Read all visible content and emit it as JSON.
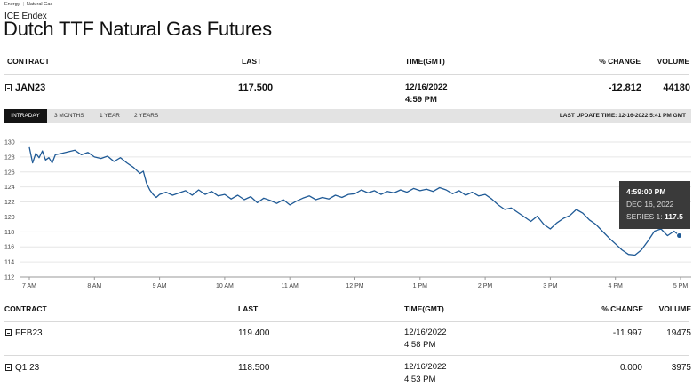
{
  "breadcrumb": {
    "items": [
      "Energy",
      "Natural Gas"
    ],
    "sep": "|"
  },
  "exchange": "ICE Endex",
  "title": "Dutch TTF Natural Gas Futures",
  "table_headers": {
    "contract": "CONTRACT",
    "last": "LAST",
    "time": "TIME(GMT)",
    "change": "% CHANGE",
    "volume": "VOLUME"
  },
  "main_row": {
    "contract": "JAN23",
    "last": "117.500",
    "date": "12/16/2022",
    "time": "4:59 PM",
    "change": "-12.812",
    "volume": "44180"
  },
  "tabs": [
    "INTRADAY",
    "3 MONTHS",
    "1 YEAR",
    "2 YEARS"
  ],
  "active_tab": "INTRADAY",
  "last_update": "LAST UPDATE TIME: 12-16-2022 5:41 PM GMT",
  "tooltip": {
    "time": "4:59:00 PM",
    "date": "DEC 16, 2022",
    "series_label": "SERIES 1:",
    "series_value": "117.5"
  },
  "other_rows": [
    {
      "contract": "FEB23",
      "last": "119.400",
      "date": "12/16/2022",
      "time": "4:58 PM",
      "change": "-11.997",
      "volume": "19475"
    },
    {
      "contract": "Q1 23",
      "last": "118.500",
      "date": "12/16/2022",
      "time": "4:53 PM",
      "change": "0.000",
      "volume": "3975"
    }
  ],
  "colors": {
    "line": "#1f5a96",
    "tab_active": "#141414",
    "tab_bar": "#e3e3e3"
  },
  "chart_data": {
    "type": "line",
    "xlabel": "",
    "ylabel": "",
    "x_ticks": [
      "7 AM",
      "8 AM",
      "9 AM",
      "10 AM",
      "11 AM",
      "12 PM",
      "1 PM",
      "2 PM",
      "3 PM",
      "4 PM",
      "5 PM"
    ],
    "y_ticks": [
      112,
      114,
      116,
      118,
      120,
      122,
      124,
      126,
      128,
      130
    ],
    "ylim": [
      112,
      130
    ],
    "grid": "horizontal",
    "series": [
      {
        "x": [
          7.0,
          7.05,
          7.1,
          7.15,
          7.2,
          7.25,
          7.3,
          7.35,
          7.4,
          7.5,
          7.6,
          7.7,
          7.8,
          7.9,
          8.0,
          8.1,
          8.2,
          8.3,
          8.4,
          8.5,
          8.6,
          8.7,
          8.75,
          8.8,
          8.85,
          8.9,
          8.95,
          9.0,
          9.1,
          9.2,
          9.3,
          9.4,
          9.5,
          9.6,
          9.7,
          9.8,
          9.9,
          10.0,
          10.1,
          10.2,
          10.3,
          10.4,
          10.5,
          10.6,
          10.7,
          10.8,
          10.9,
          11.0,
          11.1,
          11.2,
          11.3,
          11.4,
          11.5,
          11.6,
          11.7,
          11.8,
          11.9,
          12.0,
          12.1,
          12.2,
          12.3,
          12.4,
          12.5,
          12.6,
          12.7,
          12.8,
          12.9,
          13.0,
          13.1,
          13.2,
          13.3,
          13.4,
          13.5,
          13.6,
          13.7,
          13.8,
          13.9,
          14.0,
          14.1,
          14.2,
          14.3,
          14.4,
          14.5,
          14.6,
          14.7,
          14.8,
          14.9,
          15.0,
          15.1,
          15.2,
          15.3,
          15.4,
          15.5,
          15.6,
          15.7,
          15.8,
          15.9,
          16.0,
          16.1,
          16.2,
          16.3,
          16.4,
          16.5,
          16.6,
          16.7,
          16.8,
          16.9,
          16.98
        ],
        "values": [
          129.3,
          127.2,
          128.5,
          127.9,
          128.8,
          127.6,
          127.9,
          127.2,
          128.3,
          128.5,
          128.7,
          128.9,
          128.3,
          128.6,
          128.0,
          127.8,
          128.1,
          127.4,
          127.9,
          127.2,
          126.6,
          125.8,
          126.1,
          124.5,
          123.6,
          123.0,
          122.6,
          123.0,
          123.3,
          122.9,
          123.2,
          123.5,
          122.9,
          123.6,
          123.0,
          123.4,
          122.8,
          123.0,
          122.4,
          122.9,
          122.3,
          122.7,
          121.9,
          122.5,
          122.2,
          121.8,
          122.3,
          121.6,
          122.1,
          122.5,
          122.8,
          122.3,
          122.6,
          122.4,
          122.9,
          122.6,
          123.0,
          123.1,
          123.6,
          123.2,
          123.5,
          123.0,
          123.4,
          123.2,
          123.6,
          123.3,
          123.8,
          123.5,
          123.7,
          123.4,
          123.9,
          123.6,
          123.1,
          123.5,
          122.9,
          123.3,
          122.8,
          123.0,
          122.4,
          121.6,
          121.0,
          121.2,
          120.6,
          120.0,
          119.4,
          120.1,
          119.0,
          118.4,
          119.2,
          119.8,
          120.2,
          121.0,
          120.5,
          119.6,
          119.0,
          118.1,
          117.2,
          116.4,
          115.6,
          115.0,
          114.9,
          115.6,
          116.8,
          118.1,
          118.4,
          117.5,
          118.1,
          117.5
        ]
      }
    ]
  }
}
